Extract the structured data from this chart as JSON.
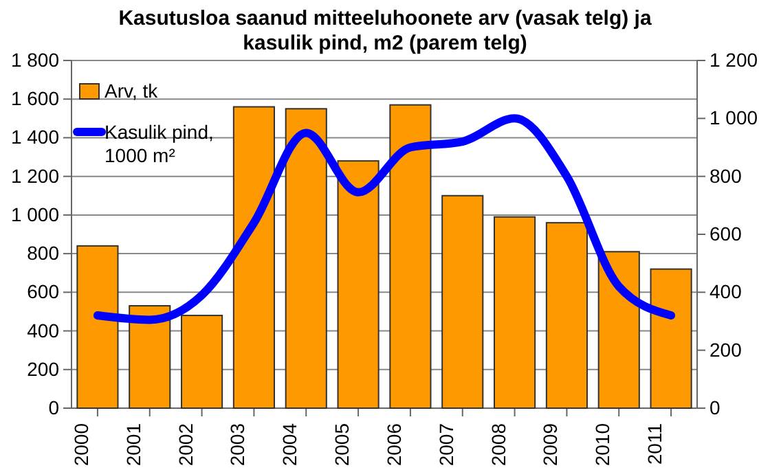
{
  "chart_data": {
    "type": "bar",
    "title": "Kasutusloa saanud mitteeluhoonete arv (vasak telg) ja kasulik pind, m2 (parem telg)",
    "categories": [
      "2000",
      "2001",
      "2002",
      "2003",
      "2004",
      "2005",
      "2006",
      "2007",
      "2008",
      "2009",
      "2010",
      "2011"
    ],
    "series": [
      {
        "name": "Arv, tk",
        "color": "#ff9900",
        "values": [
          840,
          530,
          480,
          1560,
          1550,
          1280,
          1570,
          1100,
          990,
          960,
          810,
          720
        ]
      },
      {
        "name": "Kasulik pind, 1000 m²",
        "type": "line",
        "axis": "y2",
        "color": "#0000ff",
        "values": [
          320,
          305,
          390,
          640,
          950,
          745,
          900,
          920,
          1000,
          800,
          420,
          320
        ]
      }
    ],
    "ylim": [
      0,
      1800
    ],
    "yticks": [
      0,
      200,
      400,
      600,
      800,
      {
        "value": 1000,
        "label": "1 000"
      },
      {
        "value": 1200,
        "label": "1 200"
      },
      {
        "value": 1400,
        "label": "1 400"
      },
      {
        "value": 1600,
        "label": "1 600"
      },
      {
        "value": 1800,
        "label": "1 800"
      }
    ],
    "y2lim": [
      0,
      1200
    ],
    "y2ticks": [
      0,
      200,
      400,
      600,
      800,
      {
        "value": 1000,
        "label": "1 000"
      },
      {
        "value": 1200,
        "label": "1 200"
      }
    ],
    "grid": "y",
    "legend": "top left",
    "marker": "none",
    "line_style": "solid"
  }
}
